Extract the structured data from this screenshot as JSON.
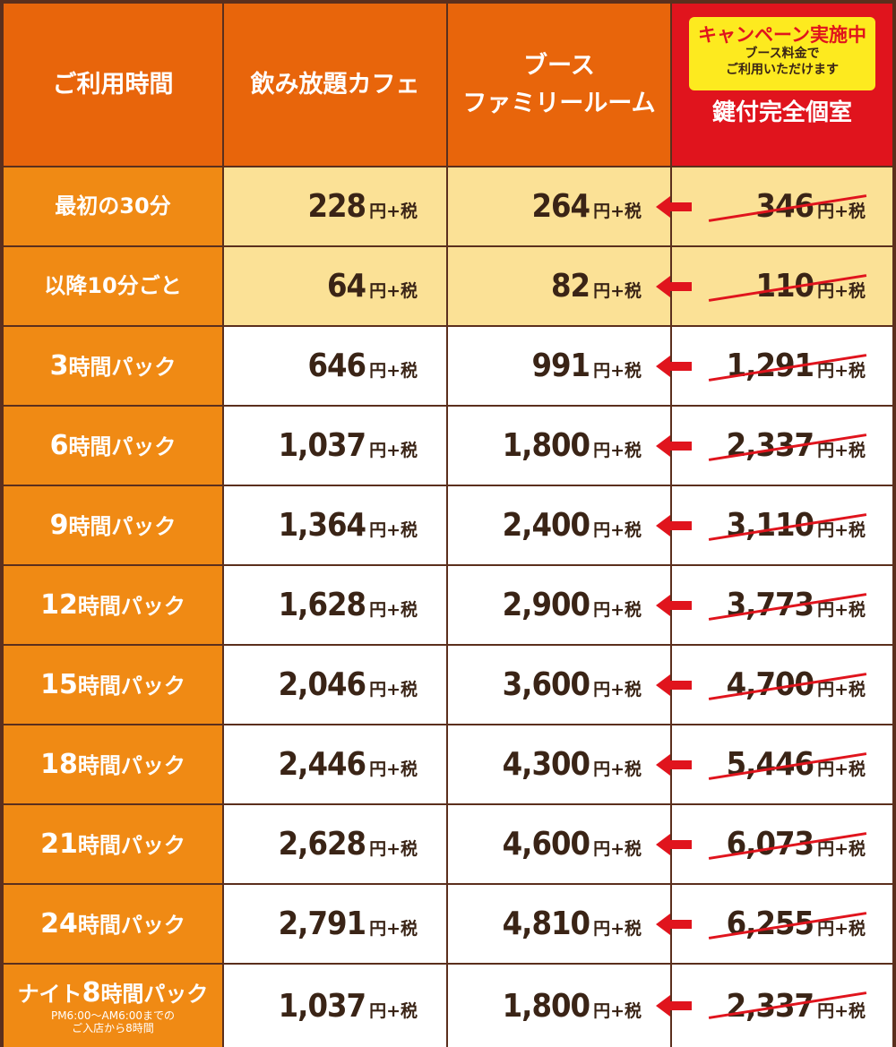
{
  "header": {
    "time": "ご利用時間",
    "cafe": "飲み放題カフェ",
    "booth_line1": "ブース",
    "booth_line2": "ファミリールーム",
    "campaign_title": "キャンペーン実施中",
    "campaign_sub1": "ブース料金で",
    "campaign_sub2": "ご利用いただけます",
    "private_room": "鍵付完全個室"
  },
  "unit": "円+税",
  "colors": {
    "header_bg": "#e8650b",
    "label_bg": "#f08a14",
    "highlight_bg": "#fbe196",
    "campaign_red": "#e0141d",
    "campaign_yellow": "#fdea1f",
    "text_brown": "#3a2416"
  },
  "rows": [
    {
      "label": "最初の30分",
      "cafe": "228",
      "booth": "264",
      "old": "346"
    },
    {
      "label": "以降10分ごと",
      "cafe": "64",
      "booth": "82",
      "old": "110"
    },
    {
      "label_num": "3",
      "label_rest": "時間パック",
      "cafe": "646",
      "booth": "991",
      "old": "1,291"
    },
    {
      "label_num": "6",
      "label_rest": "時間パック",
      "cafe": "1,037",
      "booth": "1,800",
      "old": "2,337"
    },
    {
      "label_num": "9",
      "label_rest": "時間パック",
      "cafe": "1,364",
      "booth": "2,400",
      "old": "3,110"
    },
    {
      "label_num": "12",
      "label_rest": "時間パック",
      "cafe": "1,628",
      "booth": "2,900",
      "old": "3,773"
    },
    {
      "label_num": "15",
      "label_rest": "時間パック",
      "cafe": "2,046",
      "booth": "3,600",
      "old": "4,700"
    },
    {
      "label_num": "18",
      "label_rest": "時間パック",
      "cafe": "2,446",
      "booth": "4,300",
      "old": "5,446"
    },
    {
      "label_num": "21",
      "label_rest": "時間パック",
      "cafe": "2,628",
      "booth": "4,600",
      "old": "6,073"
    },
    {
      "label_num": "24",
      "label_rest": "時間パック",
      "cafe": "2,791",
      "booth": "4,810",
      "old": "6,255"
    },
    {
      "label_pre": "ナイト",
      "label_num": "8",
      "label_rest": "時間パック",
      "note1": "PM6:00〜AM6:00までの",
      "note2": "ご入店から8時間",
      "cafe": "1,037",
      "booth": "1,800",
      "old": "2,337"
    }
  ]
}
